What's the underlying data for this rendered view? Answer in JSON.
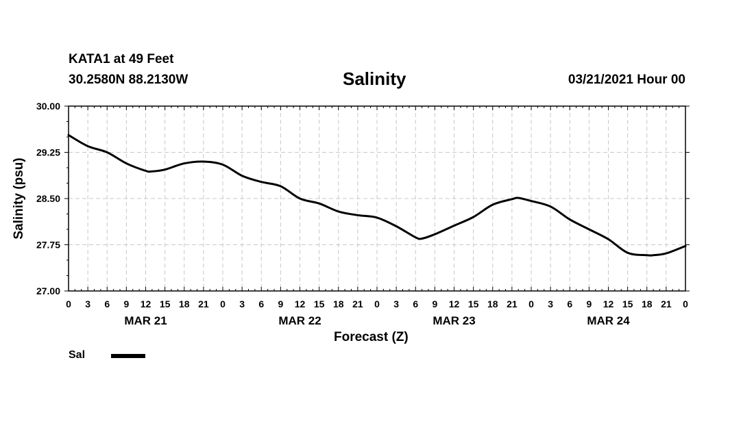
{
  "header": {
    "station": "KATA1 at 49 Feet",
    "coords": "30.2580N 88.2130W",
    "title": "Salinity",
    "datetime": "03/21/2021 Hour 00"
  },
  "legend": {
    "label": "Sal",
    "color": "#000000"
  },
  "chart_data": {
    "type": "line",
    "title": "Salinity",
    "xlabel": "Forecast (Z)",
    "ylabel": "Salinity (psu)",
    "ylim": [
      27.0,
      30.0
    ],
    "yticks": [
      "27.00",
      "27.75",
      "28.50",
      "29.25",
      "30.00"
    ],
    "grid": true,
    "xlim_hours": [
      0,
      96
    ],
    "xtick_labels": [
      "0",
      "3",
      "6",
      "9",
      "12",
      "15",
      "18",
      "21",
      "0",
      "3",
      "6",
      "9",
      "12",
      "15",
      "18",
      "21",
      "0",
      "3",
      "6",
      "9",
      "12",
      "15",
      "18",
      "21",
      "0",
      "3",
      "6",
      "9",
      "12",
      "15",
      "18",
      "21",
      "0"
    ],
    "day_labels": [
      "MAR 21",
      "MAR 22",
      "MAR 23",
      "MAR 24"
    ],
    "series": [
      {
        "name": "Sal",
        "x": [
          0,
          3,
          6,
          9,
          12,
          13,
          15,
          18,
          21,
          24,
          27,
          30,
          33,
          36,
          39,
          42,
          45,
          48,
          51,
          54,
          55,
          57,
          60,
          63,
          66,
          69,
          70,
          72,
          75,
          78,
          81,
          84,
          87,
          90,
          91,
          93,
          96
        ],
        "values": [
          29.53,
          29.35,
          29.25,
          29.07,
          28.95,
          28.94,
          28.97,
          29.07,
          29.1,
          29.05,
          28.87,
          28.77,
          28.7,
          28.5,
          28.42,
          28.29,
          28.23,
          28.19,
          28.05,
          27.87,
          27.85,
          27.92,
          28.06,
          28.2,
          28.4,
          28.49,
          28.51,
          28.46,
          28.37,
          28.16,
          28.0,
          27.84,
          27.62,
          27.58,
          27.58,
          27.61,
          27.73
        ]
      }
    ]
  }
}
